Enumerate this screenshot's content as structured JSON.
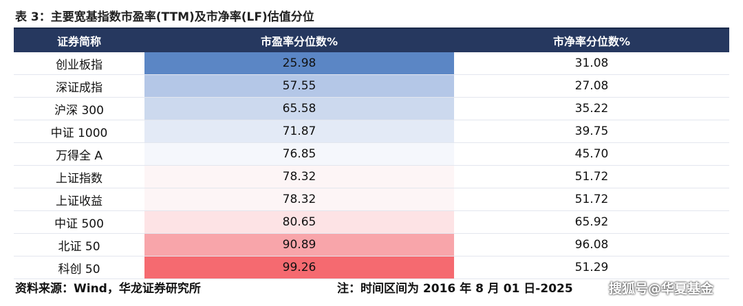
{
  "title": "表 3：主要宽基指数市盈率(TTM)及市净率(LF)估值分位",
  "table": {
    "header": [
      "证券简称",
      "市盈率分位数%",
      "市净率分位数%"
    ],
    "rows": [
      [
        "创业板指",
        "25.98",
        "31.08"
      ],
      [
        "深证成指",
        "57.55",
        "27.08"
      ],
      [
        "沪深 300",
        "65.58",
        "35.22"
      ],
      [
        "中证 1000",
        "71.87",
        "39.75"
      ],
      [
        "万得全 A",
        "76.85",
        "45.70"
      ],
      [
        "上证指数",
        "78.32",
        "51.72"
      ],
      [
        "上证收益",
        "78.32",
        "51.72"
      ],
      [
        "中证 500",
        "80.65",
        "65.92"
      ],
      [
        "北证 50",
        "90.89",
        "96.08"
      ],
      [
        "科创 50",
        "99.26",
        "51.29"
      ]
    ],
    "pe_colors": [
      "#5b86c5",
      "#b4c7e7",
      "#ccd9ee",
      "#e3eaf6",
      "#f5f7fc",
      "#fdf5f6",
      "#fdf5f6",
      "#fde3e5",
      "#f8a5aa",
      "#f56a70"
    ]
  },
  "footer": {
    "source": "资料来源：Wind，华龙证券研究所",
    "note": "注：时间区间为 2016 年 8 月 01 日-2025",
    "watermark": "搜狐号@华夏基金"
  }
}
